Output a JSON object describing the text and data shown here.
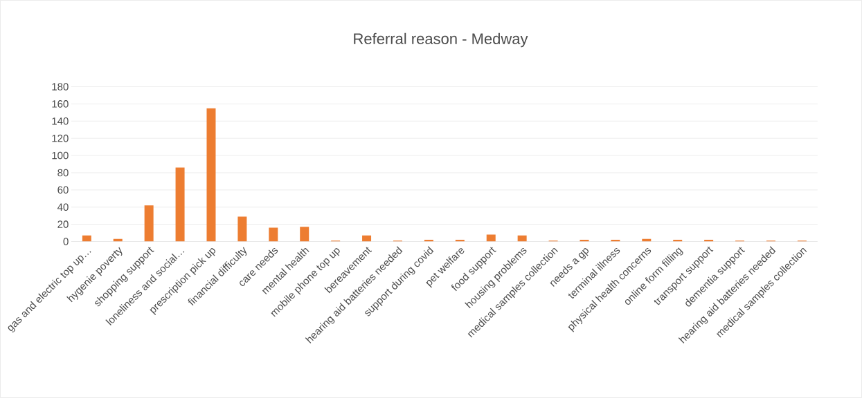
{
  "chart_data": {
    "type": "bar",
    "title": "Referral reason - Medway",
    "categories": [
      "gas and electric top up…",
      "hygenie poverty",
      "shopping support",
      "loneliness and social…",
      "prescription pick up",
      "financial difficulty",
      "care needs",
      "mental health",
      "mobile phone top up",
      "bereavement",
      "hearing aid batteries needed",
      "support during covid",
      "pet welfare",
      "food support",
      "housing problems",
      "medical samples collection",
      "needs a gp",
      "terminal illness",
      "physical health concerns",
      "online form filling",
      "transport support",
      "dementia support",
      "hearing aid batteries needed",
      "medical samples collection"
    ],
    "values": [
      7,
      3,
      42,
      86,
      155,
      29,
      16,
      17,
      1,
      7,
      1,
      2,
      2,
      8,
      7,
      1,
      2,
      2,
      3,
      2,
      2,
      1,
      1,
      1
    ],
    "color": "#ed7d31",
    "ylim": [
      0,
      180
    ],
    "yticks": [
      0,
      20,
      40,
      60,
      80,
      100,
      120,
      140,
      160,
      180
    ],
    "grid": "y"
  }
}
